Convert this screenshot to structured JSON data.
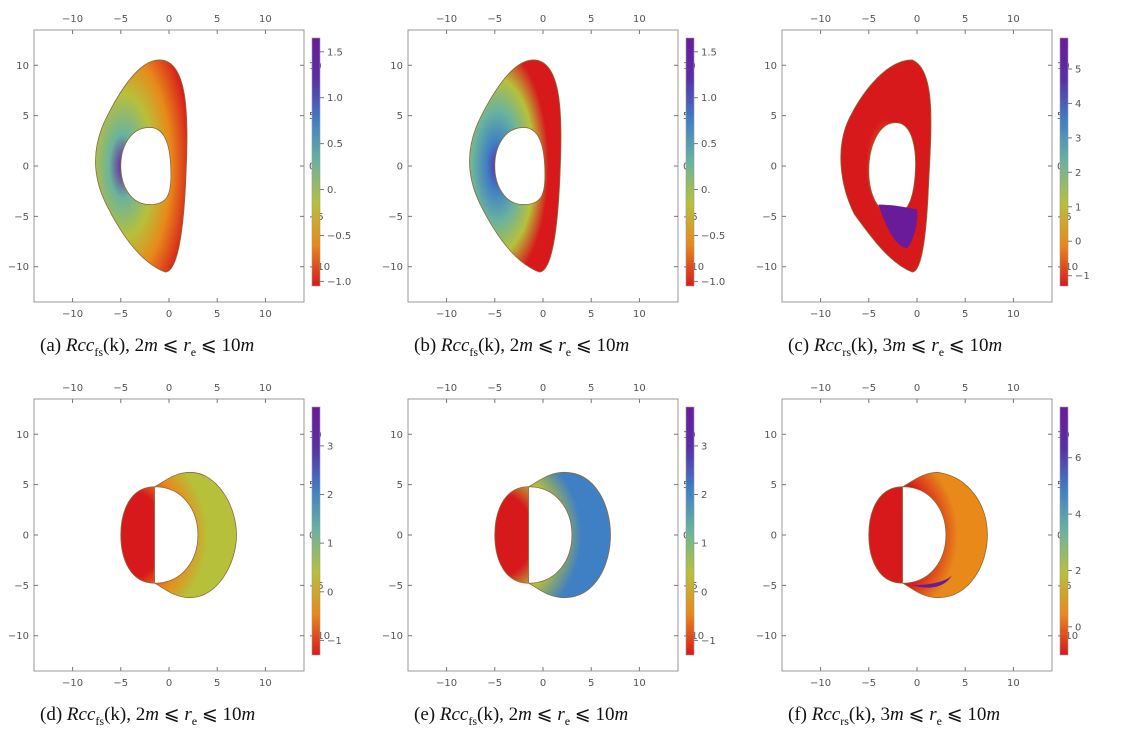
{
  "chart_data": [
    {
      "id": "a",
      "type": "heatmap",
      "caption_letter": "(a)",
      "caption_quantity": "fs",
      "caption_sep": ",",
      "caption_range": "2m ⩽ r_e ⩽ 10m",
      "caption_lo": "2",
      "caption_hi": "10",
      "x_ticks": [
        "−10",
        "−5",
        "0",
        "5",
        "10"
      ],
      "y_ticks": [
        "10",
        "5",
        "0",
        "−5",
        "−10"
      ],
      "xlim": [
        -14,
        14
      ],
      "ylim": [
        -13.5,
        13.5
      ],
      "colorbar_ticks": [
        "1.5",
        "1.0",
        "0.5",
        "0.",
        "−0.5",
        "−1.0"
      ],
      "colorbar_values": [
        1.5,
        1.0,
        0.5,
        0,
        -0.5,
        -1.0
      ],
      "colorbar_range": [
        -1.05,
        1.65
      ],
      "grid": false
    },
    {
      "id": "b",
      "type": "heatmap",
      "caption_letter": "(b)",
      "caption_quantity": "fs",
      "caption_sep": ",",
      "caption_range": "2m ⩽ r_e ⩽ 10m",
      "caption_lo": "2",
      "caption_hi": "10",
      "x_ticks": [
        "−10",
        "−5",
        "0",
        "5",
        "10"
      ],
      "y_ticks": [
        "10",
        "5",
        "0",
        "−5",
        "−10"
      ],
      "xlim": [
        -14,
        14
      ],
      "ylim": [
        -13.5,
        13.5
      ],
      "colorbar_ticks": [
        "1.5",
        "1.0",
        "0.5",
        "0.",
        "−0.5",
        "−1.0"
      ],
      "colorbar_values": [
        1.5,
        1.0,
        0.5,
        0,
        -0.5,
        -1.0
      ],
      "colorbar_range": [
        -1.05,
        1.65
      ],
      "grid": false
    },
    {
      "id": "c",
      "type": "heatmap",
      "caption_letter": "(c)",
      "caption_quantity": "rs",
      "caption_sep": ",",
      "caption_range": "3m ⩽ r_e ⩽ 10m",
      "caption_lo": "3",
      "caption_hi": "10",
      "x_ticks": [
        "−10",
        "−5",
        "0",
        "5",
        "10"
      ],
      "y_ticks": [
        "10",
        "5",
        "0",
        "−5",
        "−10"
      ],
      "xlim": [
        -14,
        14
      ],
      "ylim": [
        -13.5,
        13.5
      ],
      "colorbar_ticks": [
        "5",
        "4",
        "3",
        "2",
        "1",
        "0",
        "−1"
      ],
      "colorbar_values": [
        5,
        4,
        3,
        2,
        1,
        0,
        -1
      ],
      "colorbar_range": [
        -1.3,
        5.9
      ],
      "grid": false
    },
    {
      "id": "d",
      "type": "heatmap",
      "caption_letter": "(d)",
      "caption_quantity": "fs",
      "caption_sep": ",",
      "caption_range": "2m ⩽ r_e ⩽ 10m",
      "caption_lo": "2",
      "caption_hi": "10",
      "x_ticks": [
        "−10",
        "−5",
        "0",
        "5",
        "10"
      ],
      "y_ticks": [
        "10",
        "5",
        "0",
        "−5",
        "−10"
      ],
      "xlim": [
        -14,
        14
      ],
      "ylim": [
        -13.5,
        13.5
      ],
      "colorbar_ticks": [
        "3",
        "2",
        "1",
        "0",
        "−1"
      ],
      "colorbar_values": [
        3,
        2,
        1,
        0,
        -1
      ],
      "colorbar_range": [
        -1.3,
        3.8
      ],
      "grid": false
    },
    {
      "id": "e",
      "type": "heatmap",
      "caption_letter": "(e)",
      "caption_quantity": "fs",
      "caption_sep": ",",
      "caption_range": "2m ⩽ r_e ⩽ 10m",
      "caption_lo": "2",
      "caption_hi": "10",
      "x_ticks": [
        "−10",
        "−5",
        "0",
        "5",
        "10"
      ],
      "y_ticks": [
        "10",
        "5",
        "0",
        "−5",
        "−10"
      ],
      "xlim": [
        -14,
        14
      ],
      "ylim": [
        -13.5,
        13.5
      ],
      "colorbar_ticks": [
        "3",
        "2",
        "1",
        "0",
        "−1"
      ],
      "colorbar_values": [
        3,
        2,
        1,
        0,
        -1
      ],
      "colorbar_range": [
        -1.3,
        3.8
      ],
      "grid": false
    },
    {
      "id": "f",
      "type": "heatmap",
      "caption_letter": "(f)",
      "caption_quantity": "rs",
      "caption_sep": ",",
      "caption_range": "3m ⩽ r_e ⩽ 10m",
      "caption_lo": "3",
      "caption_hi": "10",
      "x_ticks": [
        "−10",
        "−5",
        "0",
        "5",
        "10"
      ],
      "y_ticks": [
        "10",
        "5",
        "0",
        "−5",
        "−10"
      ],
      "xlim": [
        -14,
        14
      ],
      "ylim": [
        -13.5,
        13.5
      ],
      "colorbar_ticks": [
        "6",
        "4",
        "2",
        "0"
      ],
      "colorbar_values": [
        6,
        4,
        2,
        0
      ],
      "colorbar_range": [
        -1.0,
        7.8
      ],
      "grid": false
    }
  ],
  "caption_prefix": "Rc",
  "caption_arg": "(k)",
  "colormap": [
    "#d7191c",
    "#e8891a",
    "#b7c03a",
    "#6ab39e",
    "#3f7fc4",
    "#5a2fa8",
    "#6a1b9a"
  ]
}
